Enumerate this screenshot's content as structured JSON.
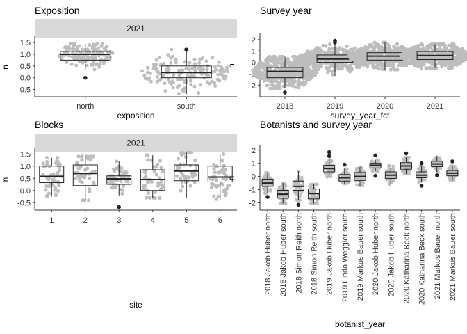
{
  "chart_data": [
    {
      "id": "exposition",
      "type": "box",
      "title": "Exposition",
      "facet": "2021",
      "xlabel": "exposition",
      "ylabel": "n",
      "ylim": [
        -0.75,
        1.65
      ],
      "yticks": [
        -0.5,
        0.0,
        0.5,
        1.0,
        1.5
      ],
      "ytick_labels": [
        "-0.5",
        "0.0",
        "0.5",
        "1.0",
        "1.5"
      ],
      "categories": [
        "north",
        "south"
      ],
      "boxes": [
        {
          "q1": 0.75,
          "median": 1.0,
          "q3": 1.12,
          "lo": 0.35,
          "hi": 1.45,
          "outliers": [
            0.0
          ],
          "spread": 1.1,
          "npts": 150
        },
        {
          "q1": 0.0,
          "median": 0.22,
          "q3": 0.5,
          "lo": -0.7,
          "hi": 1.2,
          "outliers": [
            1.2
          ],
          "spread": 1.8,
          "npts": 150
        }
      ]
    },
    {
      "id": "survey_year",
      "type": "box",
      "title": "Survey year",
      "xlabel": "survey_year_fct",
      "ylabel": "n",
      "ylim": [
        -2.9,
        2.3
      ],
      "yticks": [
        -2,
        -1,
        0,
        1,
        2
      ],
      "ytick_labels": [
        "-2",
        "-1",
        "0",
        "1",
        "2"
      ],
      "categories": [
        "2018",
        "2019",
        "2020",
        "2021"
      ],
      "boxes": [
        {
          "q1": -1.35,
          "median": -0.8,
          "q3": -0.45,
          "lo": -2.3,
          "hi": 0.5,
          "outliers": [
            -2.65
          ],
          "spread": 1.8,
          "npts": 400
        },
        {
          "q1": 0.0,
          "median": 0.3,
          "q3": 0.65,
          "lo": -1.2,
          "hi": 1.6,
          "outliers": [
            1.75,
            1.9
          ],
          "spread": 2.1,
          "npts": 400
        },
        {
          "q1": 0.2,
          "median": 0.55,
          "q3": 0.85,
          "lo": -0.65,
          "hi": 1.75,
          "outliers": [],
          "spread": 2.0,
          "npts": 400
        },
        {
          "q1": 0.25,
          "median": 0.6,
          "q3": 0.95,
          "lo": -0.5,
          "hi": 1.6,
          "outliers": [],
          "spread": 1.9,
          "npts": 400
        }
      ]
    },
    {
      "id": "blocks",
      "type": "box",
      "title": "Blocks",
      "facet": "2021",
      "xlabel": "site",
      "ylabel": "n",
      "ylim": [
        -0.75,
        1.65
      ],
      "yticks": [
        -0.5,
        0.0,
        0.5,
        1.0,
        1.5
      ],
      "ytick_labels": [
        "-0.5",
        "0.0",
        "0.5",
        "1.0",
        "1.5"
      ],
      "categories": [
        "1",
        "2",
        "3",
        "4",
        "5",
        "6"
      ],
      "boxes": [
        {
          "q1": 0.32,
          "median": 0.58,
          "q3": 1.0,
          "lo": -0.25,
          "hi": 1.35,
          "outliers": [],
          "spread": 0.85,
          "npts": 45
        },
        {
          "q1": 0.2,
          "median": 0.7,
          "q3": 1.05,
          "lo": -0.4,
          "hi": 1.4,
          "outliers": [],
          "spread": 0.85,
          "npts": 45
        },
        {
          "q1": 0.25,
          "median": 0.48,
          "q3": 0.6,
          "lo": -0.2,
          "hi": 1.2,
          "outliers": [
            -0.68
          ],
          "spread": 0.85,
          "npts": 45
        },
        {
          "q1": 0.0,
          "median": 0.45,
          "q3": 0.85,
          "lo": -0.3,
          "hi": 1.45,
          "outliers": [],
          "spread": 0.85,
          "npts": 45
        },
        {
          "q1": 0.4,
          "median": 0.8,
          "q3": 1.05,
          "lo": -0.3,
          "hi": 1.55,
          "outliers": [],
          "spread": 0.85,
          "npts": 45
        },
        {
          "q1": 0.35,
          "median": 0.55,
          "q3": 1.0,
          "lo": -0.4,
          "hi": 1.5,
          "outliers": [],
          "spread": 0.85,
          "npts": 45
        }
      ]
    },
    {
      "id": "botanists_year",
      "type": "box",
      "title": "Botanists and survey year",
      "xlabel": "botanist_year",
      "ylabel": "n",
      "ylim": [
        -2.45,
        2.2
      ],
      "yticks": [
        -2,
        -1,
        0,
        1,
        2
      ],
      "ytick_labels": [
        "-2",
        "-1",
        "0",
        "1",
        "2"
      ],
      "categories": [
        "2018 Jakob Huber north",
        "2018 Jakob Huber south",
        "2018 Simon Reith north",
        "2018 Simon Reith south",
        "2019 Jakob Huber north",
        "2019 Linda Weggler south",
        "2019 Markus Bauer south",
        "2020 Jakob Huber north",
        "2020 Jakob Huber south",
        "2020 Katharina Beck north",
        "2020 Katharina Beck south",
        "2021 Markus Bauer north",
        "2021 Markus Bauer south"
      ],
      "boxes": [
        {
          "q1": -0.75,
          "median": -0.5,
          "q3": -0.2,
          "lo": -1.3,
          "hi": 0.3,
          "outliers": [
            -1.55
          ],
          "spread": 0.9,
          "npts": 60
        },
        {
          "q1": -1.65,
          "median": -1.35,
          "q3": -1.05,
          "lo": -2.05,
          "hi": -0.5,
          "outliers": [],
          "spread": 0.9,
          "npts": 60
        },
        {
          "q1": -1.05,
          "median": -0.75,
          "q3": -0.35,
          "lo": -1.8,
          "hi": 0.4,
          "outliers": [
            -2.15
          ],
          "spread": 0.9,
          "npts": 60
        },
        {
          "q1": -1.7,
          "median": -1.3,
          "q3": -0.95,
          "lo": -2.05,
          "hi": -0.6,
          "outliers": [],
          "spread": 0.9,
          "npts": 60
        },
        {
          "q1": 0.35,
          "median": 0.6,
          "q3": 0.85,
          "lo": -0.05,
          "hi": 1.3,
          "outliers": [
            1.55,
            1.85
          ],
          "spread": 0.9,
          "npts": 60
        },
        {
          "q1": -0.35,
          "median": -0.1,
          "q3": 0.15,
          "lo": -0.55,
          "hi": 0.6,
          "outliers": [
            0.9
          ],
          "spread": 0.9,
          "npts": 60
        },
        {
          "q1": -0.3,
          "median": 0.0,
          "q3": 0.3,
          "lo": -0.7,
          "hi": 0.75,
          "outliers": [],
          "spread": 0.9,
          "npts": 60
        },
        {
          "q1": 0.65,
          "median": 0.85,
          "q3": 1.0,
          "lo": 0.4,
          "hi": 1.25,
          "outliers": [
            0.05,
            1.6
          ],
          "spread": 0.9,
          "npts": 60
        },
        {
          "q1": -0.15,
          "median": 0.1,
          "q3": 0.35,
          "lo": -0.6,
          "hi": 0.85,
          "outliers": [],
          "spread": 0.9,
          "npts": 60
        },
        {
          "q1": 0.55,
          "median": 0.8,
          "q3": 1.05,
          "lo": 0.2,
          "hi": 1.45,
          "outliers": [
            1.75
          ],
          "spread": 0.9,
          "npts": 60
        },
        {
          "q1": -0.1,
          "median": 0.1,
          "q3": 0.35,
          "lo": -0.45,
          "hi": 0.8,
          "outliers": [
            -0.7,
            1.0
          ],
          "spread": 0.9,
          "npts": 60
        },
        {
          "q1": 0.75,
          "median": 0.95,
          "q3": 1.15,
          "lo": 0.35,
          "hi": 1.55,
          "outliers": [
            0.1
          ],
          "spread": 0.9,
          "npts": 60
        },
        {
          "q1": 0.05,
          "median": 0.25,
          "q3": 0.45,
          "lo": -0.3,
          "hi": 0.8,
          "outliers": [
            1.15
          ],
          "spread": 0.9,
          "npts": 60
        }
      ]
    }
  ],
  "colors": {
    "points": "#bdbdbd",
    "box_stroke": "#222222",
    "strip_fill": "#d9d9d9",
    "axis": "#333333"
  }
}
